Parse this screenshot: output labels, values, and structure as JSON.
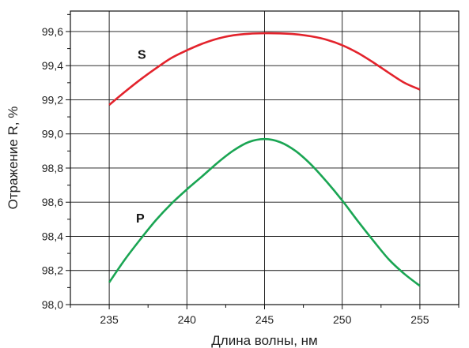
{
  "chart_data": {
    "type": "line",
    "xlabel": "Длина волны, нм",
    "ylabel": "Отражение R, %",
    "xlim": [
      232.5,
      257.5
    ],
    "ylim": [
      98.0,
      99.72
    ],
    "x_ticks": [
      235,
      240,
      245,
      250,
      255
    ],
    "y_ticks": [
      98.0,
      98.2,
      98.4,
      98.6,
      98.8,
      99.0,
      99.2,
      99.4,
      99.6
    ],
    "y_tick_labels": [
      "98,0",
      "98,2",
      "98,4",
      "98,6",
      "98,8",
      "99,0",
      "99,2",
      "99,4",
      "99,6"
    ],
    "grid": true,
    "series": [
      {
        "name": "S",
        "color": "#e3232c",
        "x": [
          235,
          236,
          237,
          238,
          239,
          240,
          241,
          242,
          243,
          244,
          245,
          246,
          247,
          248,
          249,
          250,
          251,
          252,
          253,
          254,
          255
        ],
        "values": [
          99.17,
          99.246,
          99.318,
          99.384,
          99.445,
          99.49,
          99.529,
          99.559,
          99.578,
          99.587,
          99.59,
          99.589,
          99.584,
          99.572,
          99.552,
          99.52,
          99.475,
          99.419,
          99.358,
          99.3,
          99.26
        ]
      },
      {
        "name": "P",
        "color": "#1aa553",
        "x": [
          235,
          236,
          237,
          238,
          239,
          240,
          241,
          242,
          243,
          244,
          245,
          246,
          247,
          248,
          249,
          250,
          251,
          252,
          253,
          254,
          255
        ],
        "values": [
          98.13,
          98.263,
          98.382,
          98.494,
          98.591,
          98.675,
          98.753,
          98.833,
          98.903,
          98.953,
          98.97,
          98.952,
          98.9,
          98.82,
          98.72,
          98.61,
          98.49,
          98.375,
          98.265,
          98.18,
          98.11
        ]
      }
    ]
  }
}
